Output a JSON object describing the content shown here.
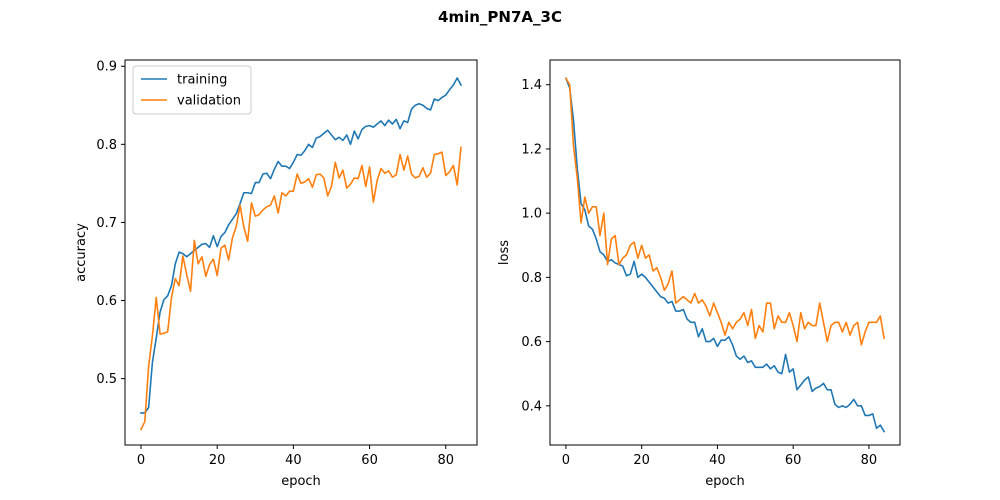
{
  "figure": {
    "suptitle": "4min_PN7A_3C"
  },
  "colors": {
    "training": "#1f77b4",
    "validation": "#ff7f0e"
  },
  "chart_data": [
    {
      "type": "line",
      "title": "",
      "xlabel": "epoch",
      "ylabel": "accuracy",
      "xlim": [
        -4.2,
        88.2
      ],
      "ylim": [
        0.415,
        0.908
      ],
      "xticks": [
        0,
        20,
        40,
        60,
        80
      ],
      "yticks": [
        0.5,
        0.6,
        0.7,
        0.8,
        0.9
      ],
      "ytick_labels": [
        "0.5",
        "0.6",
        "0.7",
        "0.8",
        "0.9"
      ],
      "legend": {
        "placement": "top-left",
        "entries": [
          "training",
          "validation"
        ]
      },
      "series": [
        {
          "name": "training",
          "values": [
            0.456,
            0.456,
            0.463,
            0.521,
            0.552,
            0.585,
            0.601,
            0.606,
            0.619,
            0.647,
            0.662,
            0.66,
            0.656,
            0.66,
            0.664,
            0.668,
            0.672,
            0.673,
            0.668,
            0.683,
            0.669,
            0.682,
            0.687,
            0.697,
            0.704,
            0.711,
            0.724,
            0.738,
            0.738,
            0.737,
            0.751,
            0.751,
            0.762,
            0.763,
            0.756,
            0.768,
            0.778,
            0.772,
            0.772,
            0.769,
            0.777,
            0.787,
            0.786,
            0.792,
            0.8,
            0.796,
            0.808,
            0.81,
            0.814,
            0.818,
            0.812,
            0.806,
            0.809,
            0.805,
            0.812,
            0.8,
            0.817,
            0.807,
            0.819,
            0.823,
            0.824,
            0.822,
            0.826,
            0.83,
            0.824,
            0.831,
            0.826,
            0.832,
            0.82,
            0.83,
            0.828,
            0.845,
            0.85,
            0.852,
            0.85,
            0.846,
            0.844,
            0.858,
            0.856,
            0.86,
            0.863,
            0.87,
            0.876,
            0.885,
            0.876
          ]
        },
        {
          "name": "validation",
          "values": [
            0.435,
            0.445,
            0.516,
            0.555,
            0.604,
            0.557,
            0.558,
            0.56,
            0.604,
            0.628,
            0.619,
            0.657,
            0.633,
            0.612,
            0.677,
            0.647,
            0.656,
            0.631,
            0.646,
            0.653,
            0.632,
            0.667,
            0.671,
            0.652,
            0.68,
            0.695,
            0.722,
            0.694,
            0.676,
            0.725,
            0.708,
            0.71,
            0.716,
            0.72,
            0.722,
            0.734,
            0.712,
            0.738,
            0.734,
            0.74,
            0.74,
            0.762,
            0.75,
            0.752,
            0.756,
            0.745,
            0.761,
            0.762,
            0.757,
            0.734,
            0.746,
            0.777,
            0.757,
            0.767,
            0.744,
            0.749,
            0.757,
            0.756,
            0.773,
            0.746,
            0.771,
            0.726,
            0.754,
            0.769,
            0.763,
            0.766,
            0.758,
            0.761,
            0.787,
            0.767,
            0.785,
            0.762,
            0.757,
            0.759,
            0.77,
            0.758,
            0.763,
            0.787,
            0.788,
            0.79,
            0.76,
            0.765,
            0.773,
            0.748,
            0.796
          ]
        }
      ]
    },
    {
      "type": "line",
      "title": "",
      "xlabel": "epoch",
      "ylabel": "loss",
      "xlim": [
        -4.2,
        88.2
      ],
      "ylim": [
        0.278,
        1.477
      ],
      "xticks": [
        0,
        20,
        40,
        60,
        80
      ],
      "yticks": [
        0.4,
        0.6,
        0.8,
        1.0,
        1.2,
        1.4
      ],
      "ytick_labels": [
        "0.4",
        "0.6",
        "0.8",
        "1.0",
        "1.2",
        "1.4"
      ],
      "series": [
        {
          "name": "training",
          "values": [
            1.42,
            1.39,
            1.29,
            1.14,
            1.03,
            1.01,
            0.96,
            0.95,
            0.92,
            0.88,
            0.87,
            0.85,
            0.855,
            0.845,
            0.84,
            0.835,
            0.805,
            0.81,
            0.85,
            0.8,
            0.81,
            0.8,
            0.785,
            0.77,
            0.755,
            0.74,
            0.735,
            0.72,
            0.725,
            0.695,
            0.695,
            0.7,
            0.67,
            0.66,
            0.66,
            0.615,
            0.64,
            0.6,
            0.6,
            0.61,
            0.585,
            0.605,
            0.604,
            0.615,
            0.59,
            0.555,
            0.545,
            0.555,
            0.535,
            0.54,
            0.52,
            0.52,
            0.52,
            0.53,
            0.515,
            0.525,
            0.505,
            0.5,
            0.56,
            0.505,
            0.515,
            0.45,
            0.465,
            0.48,
            0.49,
            0.445,
            0.455,
            0.46,
            0.47,
            0.45,
            0.45,
            0.405,
            0.395,
            0.4,
            0.395,
            0.405,
            0.42,
            0.4,
            0.4,
            0.37,
            0.37,
            0.375,
            0.33,
            0.34,
            0.32
          ]
        },
        {
          "name": "validation",
          "values": [
            1.42,
            1.4,
            1.21,
            1.11,
            0.97,
            1.05,
            1.0,
            1.02,
            1.02,
            0.93,
            1.0,
            0.84,
            0.92,
            0.93,
            0.84,
            0.86,
            0.87,
            0.9,
            0.91,
            0.86,
            0.9,
            0.86,
            0.87,
            0.82,
            0.83,
            0.8,
            0.76,
            0.78,
            0.82,
            0.72,
            0.73,
            0.74,
            0.73,
            0.72,
            0.75,
            0.72,
            0.73,
            0.71,
            0.68,
            0.72,
            0.69,
            0.66,
            0.62,
            0.66,
            0.64,
            0.66,
            0.67,
            0.69,
            0.65,
            0.7,
            0.61,
            0.65,
            0.63,
            0.72,
            0.72,
            0.64,
            0.68,
            0.66,
            0.66,
            0.69,
            0.65,
            0.6,
            0.69,
            0.64,
            0.66,
            0.65,
            0.65,
            0.72,
            0.66,
            0.6,
            0.65,
            0.66,
            0.66,
            0.63,
            0.66,
            0.62,
            0.65,
            0.66,
            0.59,
            0.63,
            0.66,
            0.66,
            0.66,
            0.68,
            0.61
          ]
        }
      ]
    }
  ]
}
